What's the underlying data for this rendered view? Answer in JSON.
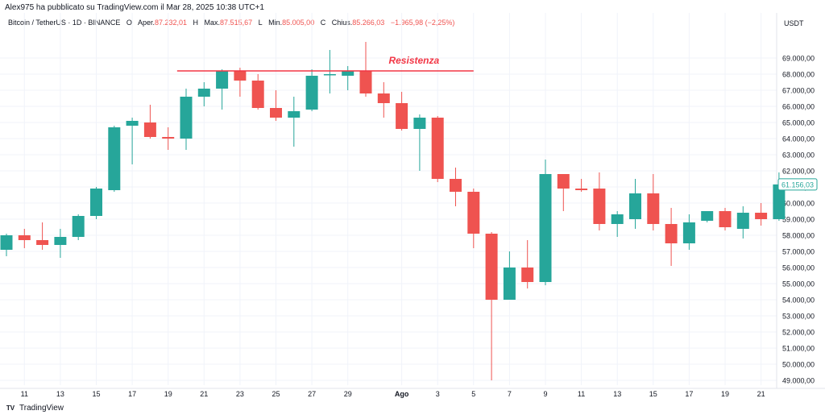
{
  "header": {
    "published": "Alex975 ha pubblicato su TradingView.com il Mar 28, 2025 10:38 UTC+1",
    "symbol": "Bitcoin / TetherUS · 1D · BINANCE",
    "open_label": "O",
    "open_text": "Aper.",
    "open_value": "87.232,01",
    "high_label": "H",
    "high_text": "Max.",
    "high_value": "87.515,67",
    "low_label": "L",
    "low_text": "Min.",
    "low_value": "85.005,00",
    "close_label": "C",
    "close_text": "Chius.",
    "close_value": "85.266,03",
    "change_value": "−1.965,98 (−2,25%)"
  },
  "axis": {
    "unit": "USDT"
  },
  "footer": {
    "logo_mark": "TV",
    "logo_text": "TradingView"
  },
  "colors": {
    "up": "#26a69a",
    "down": "#ef5350",
    "resistance": "#f23645",
    "grid": "#f0f3fa",
    "last_price": "#26a69a"
  },
  "chart_data": {
    "type": "candlestick",
    "title": "Bitcoin / TetherUS · 1D · BINANCE",
    "ylabel": "USDT",
    "ylim": [
      48700,
      70800
    ],
    "yticks": [
      49000,
      50000,
      51000,
      52000,
      53000,
      54000,
      55000,
      56000,
      57000,
      58000,
      59000,
      60000,
      61000,
      62000,
      63000,
      64000,
      65000,
      66000,
      67000,
      68000,
      69000
    ],
    "ytick_labels": [
      "49.000,00",
      "50.000,00",
      "51.000,00",
      "52.000,00",
      "53.000,00",
      "54.000,00",
      "55.000,00",
      "56.000,00",
      "57.000,00",
      "58.000,00",
      "59.000,00",
      "60.000,00",
      "61.000,00",
      "62.000,00",
      "63.000,00",
      "64.000,00",
      "65.000,00",
      "66.000,00",
      "67.000,00",
      "68.000,00",
      "69.000,00"
    ],
    "xticks": [
      {
        "index": 1,
        "label": "11"
      },
      {
        "index": 3,
        "label": "13"
      },
      {
        "index": 5,
        "label": "15"
      },
      {
        "index": 7,
        "label": "17"
      },
      {
        "index": 9,
        "label": "19"
      },
      {
        "index": 11,
        "label": "21"
      },
      {
        "index": 13,
        "label": "23"
      },
      {
        "index": 15,
        "label": "25"
      },
      {
        "index": 17,
        "label": "27"
      },
      {
        "index": 19,
        "label": "29"
      },
      {
        "index": 22,
        "label": "Ago",
        "bold": true
      },
      {
        "index": 24,
        "label": "3"
      },
      {
        "index": 26,
        "label": "5"
      },
      {
        "index": 28,
        "label": "7"
      },
      {
        "index": 30,
        "label": "9"
      },
      {
        "index": 32,
        "label": "11"
      },
      {
        "index": 34,
        "label": "13"
      },
      {
        "index": 36,
        "label": "15"
      },
      {
        "index": 38,
        "label": "17"
      },
      {
        "index": 40,
        "label": "19"
      },
      {
        "index": 42,
        "label": "21"
      }
    ],
    "candles": [
      {
        "o": 57100,
        "h": 58100,
        "l": 56700,
        "c": 58000
      },
      {
        "o": 58000,
        "h": 58400,
        "l": 57200,
        "c": 57700
      },
      {
        "o": 57700,
        "h": 58800,
        "l": 57100,
        "c": 57400
      },
      {
        "o": 57400,
        "h": 58400,
        "l": 56600,
        "c": 57900
      },
      {
        "o": 57900,
        "h": 59300,
        "l": 57700,
        "c": 59200
      },
      {
        "o": 59200,
        "h": 61000,
        "l": 59000,
        "c": 60900
      },
      {
        "o": 60800,
        "h": 64800,
        "l": 60700,
        "c": 64700
      },
      {
        "o": 64800,
        "h": 65300,
        "l": 62400,
        "c": 65100
      },
      {
        "o": 65000,
        "h": 66100,
        "l": 64000,
        "c": 64100
      },
      {
        "o": 64100,
        "h": 64700,
        "l": 63300,
        "c": 64000
      },
      {
        "o": 64000,
        "h": 67100,
        "l": 63300,
        "c": 66600
      },
      {
        "o": 66600,
        "h": 67500,
        "l": 66000,
        "c": 67100
      },
      {
        "o": 67100,
        "h": 68300,
        "l": 65800,
        "c": 68200
      },
      {
        "o": 68200,
        "h": 68400,
        "l": 66600,
        "c": 67600
      },
      {
        "o": 67600,
        "h": 68000,
        "l": 65800,
        "c": 65900
      },
      {
        "o": 65900,
        "h": 67000,
        "l": 65100,
        "c": 65300
      },
      {
        "o": 65300,
        "h": 66600,
        "l": 63500,
        "c": 65700
      },
      {
        "o": 65800,
        "h": 68300,
        "l": 65700,
        "c": 67900
      },
      {
        "o": 68000,
        "h": 69500,
        "l": 66800,
        "c": 68000
      },
      {
        "o": 67900,
        "h": 68500,
        "l": 67000,
        "c": 68200
      },
      {
        "o": 68200,
        "h": 70000,
        "l": 66600,
        "c": 66800
      },
      {
        "o": 66800,
        "h": 67500,
        "l": 65300,
        "c": 66200
      },
      {
        "o": 66200,
        "h": 66900,
        "l": 64500,
        "c": 64600
      },
      {
        "o": 64600,
        "h": 65500,
        "l": 62000,
        "c": 65300
      },
      {
        "o": 65300,
        "h": 65400,
        "l": 61300,
        "c": 61500
      },
      {
        "o": 61500,
        "h": 62200,
        "l": 59800,
        "c": 60700
      },
      {
        "o": 60700,
        "h": 60900,
        "l": 57200,
        "c": 58100
      },
      {
        "o": 58100,
        "h": 58200,
        "l": 49000,
        "c": 54000
      },
      {
        "o": 54000,
        "h": 57000,
        "l": 54000,
        "c": 56000
      },
      {
        "o": 56000,
        "h": 57700,
        "l": 54700,
        "c": 55100
      },
      {
        "o": 55100,
        "h": 62700,
        "l": 54900,
        "c": 61800
      },
      {
        "o": 61800,
        "h": 61800,
        "l": 59500,
        "c": 60900
      },
      {
        "o": 60900,
        "h": 61500,
        "l": 60700,
        "c": 60800
      },
      {
        "o": 60900,
        "h": 61900,
        "l": 58300,
        "c": 58700
      },
      {
        "o": 58700,
        "h": 59500,
        "l": 57900,
        "c": 59300
      },
      {
        "o": 59000,
        "h": 61500,
        "l": 58400,
        "c": 60600
      },
      {
        "o": 60600,
        "h": 61800,
        "l": 58300,
        "c": 58700
      },
      {
        "o": 58700,
        "h": 59700,
        "l": 56100,
        "c": 57500
      },
      {
        "o": 57500,
        "h": 59300,
        "l": 57100,
        "c": 58800
      },
      {
        "o": 58900,
        "h": 59500,
        "l": 58800,
        "c": 59500
      },
      {
        "o": 59500,
        "h": 59700,
        "l": 58300,
        "c": 58500
      },
      {
        "o": 58400,
        "h": 59800,
        "l": 57800,
        "c": 59400
      },
      {
        "o": 59400,
        "h": 60000,
        "l": 58600,
        "c": 59000
      },
      {
        "o": 59000,
        "h": 61900,
        "l": 58900,
        "c": 61156
      }
    ],
    "resistance": {
      "label": "Resistenza",
      "price": 68200,
      "from_index": 9.5,
      "to_index": 26
    },
    "last_price": {
      "value": 61156.03,
      "label": "61.156,03"
    },
    "grid": true
  }
}
